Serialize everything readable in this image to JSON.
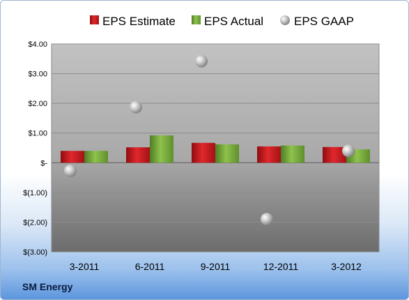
{
  "company": "SM Energy",
  "chart_data": {
    "type": "bar",
    "categories": [
      "3-2011",
      "6-2011",
      "9-2011",
      "12-2011",
      "3-2012"
    ],
    "series": [
      {
        "name": "EPS Estimate",
        "kind": "bar",
        "color": "#c8151b",
        "values": [
          0.4,
          0.52,
          0.67,
          0.55,
          0.53
        ]
      },
      {
        "name": "EPS Actual",
        "kind": "bar",
        "color": "#76a83a",
        "values": [
          0.4,
          0.92,
          0.62,
          0.58,
          0.45
        ]
      },
      {
        "name": "EPS GAAP",
        "kind": "scatter",
        "color": "#b8b8b8",
        "values": [
          -0.27,
          1.87,
          3.42,
          -1.9,
          0.4
        ]
      }
    ],
    "ylim": [
      -3,
      4
    ],
    "yticks": [
      4,
      3,
      2,
      1,
      0,
      -1,
      -2,
      -3
    ],
    "ytick_labels": [
      "$4.00",
      "$3.00",
      "$2.00",
      "$1.00",
      "$-",
      "$(1.00)",
      "$(2.00)",
      "$(3.00)"
    ],
    "grid": true,
    "legend_position": "top"
  }
}
